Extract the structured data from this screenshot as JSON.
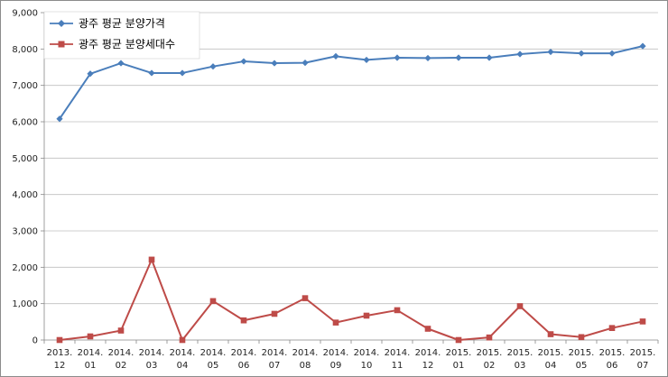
{
  "chart_data": {
    "type": "line",
    "title": "",
    "xlabel": "",
    "ylabel": "",
    "ylim": [
      0,
      9000
    ],
    "y_ticks": [
      "0",
      "1,000",
      "2,000",
      "3,000",
      "4,000",
      "5,000",
      "6,000",
      "7,000",
      "8,000",
      "9,000"
    ],
    "y_tick_values": [
      0,
      1000,
      2000,
      3000,
      4000,
      5000,
      6000,
      7000,
      8000,
      9000
    ],
    "grid": true,
    "legend_position": "top-left",
    "categories": [
      {
        "year": "2013.",
        "month": "12"
      },
      {
        "year": "2014.",
        "month": "01"
      },
      {
        "year": "2014.",
        "month": "02"
      },
      {
        "year": "2014.",
        "month": "03"
      },
      {
        "year": "2014.",
        "month": "04"
      },
      {
        "year": "2014.",
        "month": "05"
      },
      {
        "year": "2014.",
        "month": "06"
      },
      {
        "year": "2014.",
        "month": "07"
      },
      {
        "year": "2014.",
        "month": "08"
      },
      {
        "year": "2014.",
        "month": "09"
      },
      {
        "year": "2014.",
        "month": "10"
      },
      {
        "year": "2014.",
        "month": "11"
      },
      {
        "year": "2014.",
        "month": "12"
      },
      {
        "year": "2015.",
        "month": "01"
      },
      {
        "year": "2015.",
        "month": "02"
      },
      {
        "year": "2015.",
        "month": "03"
      },
      {
        "year": "2015.",
        "month": "04"
      },
      {
        "year": "2015.",
        "month": "05"
      },
      {
        "year": "2015.",
        "month": "06"
      },
      {
        "year": "2015.",
        "month": "07"
      }
    ],
    "series": [
      {
        "name": "광주 평균 분양가격",
        "color": "#4a7ebb",
        "marker": "diamond",
        "values": [
          6080,
          7320,
          7610,
          7340,
          7340,
          7520,
          7660,
          7610,
          7620,
          7800,
          7700,
          7760,
          7750,
          7760,
          7760,
          7860,
          7920,
          7880,
          7880,
          8080
        ]
      },
      {
        "name": "광주 평균 분양세대수",
        "color": "#be4b48",
        "marker": "square",
        "values": [
          0,
          100,
          260,
          2210,
          0,
          1070,
          540,
          720,
          1150,
          480,
          670,
          820,
          310,
          0,
          70,
          930,
          160,
          80,
          330,
          510
        ]
      }
    ]
  }
}
